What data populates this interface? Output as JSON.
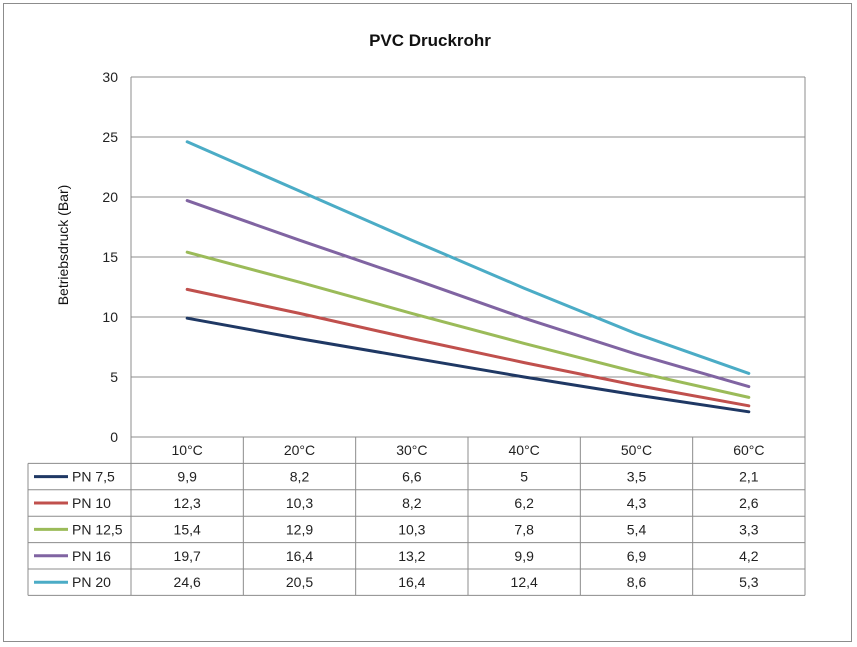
{
  "chart_data": {
    "type": "line",
    "title": "PVC Druckrohr",
    "xlabel": "",
    "ylabel": "Betriebsdruck (Bar)",
    "ylim": [
      0,
      30
    ],
    "yticks": [
      "0",
      "5",
      "10",
      "15",
      "20",
      "25",
      "30"
    ],
    "grid": true,
    "legend": "data-table-left",
    "categories": [
      "10°C",
      "20°C",
      "30°C",
      "40°C",
      "50°C",
      "60°C"
    ],
    "series": [
      {
        "name": "PN 7,5",
        "color": "#1f3864",
        "values": [
          9.9,
          8.2,
          6.6,
          5,
          3.5,
          2.1
        ],
        "labels": [
          "9,9",
          "8,2",
          "6,6",
          "5",
          "3,5",
          "2,1"
        ]
      },
      {
        "name": "PN 10",
        "color": "#c0504d",
        "values": [
          12.3,
          10.3,
          8.2,
          6.2,
          4.3,
          2.6
        ],
        "labels": [
          "12,3",
          "10,3",
          "8,2",
          "6,2",
          "4,3",
          "2,6"
        ]
      },
      {
        "name": "PN 12,5",
        "color": "#9bbb59",
        "values": [
          15.4,
          12.9,
          10.3,
          7.8,
          5.4,
          3.3
        ],
        "labels": [
          "15,4",
          "12,9",
          "10,3",
          "7,8",
          "5,4",
          "3,3"
        ]
      },
      {
        "name": "PN 16",
        "color": "#8064a2",
        "values": [
          19.7,
          16.4,
          13.2,
          9.9,
          6.9,
          4.2
        ],
        "labels": [
          "19,7",
          "16,4",
          "13,2",
          "9,9",
          "6,9",
          "4,2"
        ]
      },
      {
        "name": "PN 20",
        "color": "#4bacc6",
        "values": [
          24.6,
          20.5,
          16.4,
          12.4,
          8.6,
          5.3
        ],
        "labels": [
          "24,6",
          "20,5",
          "16,4",
          "12,4",
          "8,6",
          "5,3"
        ]
      }
    ]
  }
}
